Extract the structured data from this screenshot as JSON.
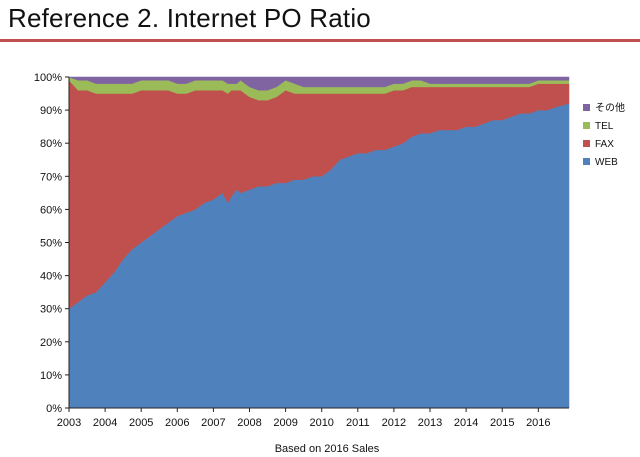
{
  "page": {
    "title": "Reference 2. Internet PO Ratio",
    "accent_color": "#c0504d"
  },
  "chart_data": {
    "type": "area",
    "stacked": true,
    "x_label": "Based on 2016 Sales",
    "x_ticks": [
      "2003",
      "2004",
      "2005",
      "2006",
      "2007",
      "2008",
      "2009",
      "2010",
      "2011",
      "2012",
      "2013",
      "2014",
      "2015",
      "2016"
    ],
    "x_range": [
      2003,
      2016.85
    ],
    "y_ticks": [
      "0%",
      "10%",
      "20%",
      "30%",
      "40%",
      "50%",
      "60%",
      "70%",
      "80%",
      "90%",
      "100%"
    ],
    "y_range": [
      0,
      100
    ],
    "legend_position": "right",
    "x": [
      2003.0,
      2003.25,
      2003.5,
      2003.75,
      2004.0,
      2004.25,
      2004.5,
      2004.75,
      2005.0,
      2005.25,
      2005.5,
      2005.75,
      2006.0,
      2006.25,
      2006.5,
      2006.75,
      2007.0,
      2007.25,
      2007.4,
      2007.5,
      2007.65,
      2007.75,
      2008.0,
      2008.25,
      2008.5,
      2008.75,
      2009.0,
      2009.25,
      2009.5,
      2009.75,
      2010.0,
      2010.25,
      2010.5,
      2010.75,
      2011.0,
      2011.25,
      2011.5,
      2011.75,
      2012.0,
      2012.25,
      2012.5,
      2012.75,
      2013.0,
      2013.25,
      2013.5,
      2013.75,
      2014.0,
      2014.25,
      2014.5,
      2014.75,
      2015.0,
      2015.25,
      2015.5,
      2015.75,
      2016.0,
      2016.25,
      2016.5,
      2016.85
    ],
    "series": [
      {
        "name": "WEB",
        "color": "#4f81bd",
        "values": [
          30,
          32,
          34,
          35,
          38,
          41,
          45,
          48,
          50,
          52,
          54,
          56,
          58,
          59,
          60,
          62,
          63,
          65,
          62,
          64,
          66,
          65,
          66,
          67,
          67,
          68,
          68,
          69,
          69,
          70,
          70,
          72,
          75,
          76,
          77,
          77,
          78,
          78,
          79,
          80,
          82,
          83,
          83,
          84,
          84,
          84,
          85,
          85,
          86,
          87,
          87,
          88,
          89,
          89,
          90,
          90,
          91,
          92
        ]
      },
      {
        "name": "FAX",
        "color": "#c0504d",
        "values": [
          69,
          64,
          62,
          60,
          57,
          54,
          50,
          47,
          46,
          44,
          42,
          40,
          37,
          36,
          36,
          34,
          33,
          31,
          33,
          32,
          30,
          31,
          28,
          26,
          26,
          26,
          28,
          26,
          26,
          25,
          25,
          23,
          20,
          19,
          18,
          18,
          17,
          17,
          17,
          16,
          15,
          14,
          14,
          13,
          13,
          13,
          12,
          12,
          11,
          10,
          10,
          9,
          8,
          8,
          8,
          8,
          7,
          6
        ]
      },
      {
        "name": "TEL",
        "color": "#9bbb59",
        "values": [
          1,
          3,
          3,
          3,
          3,
          3,
          3,
          3,
          3,
          3,
          3,
          3,
          3,
          3,
          3,
          3,
          3,
          3,
          3,
          2,
          2,
          3,
          3,
          3,
          3,
          3,
          3,
          3,
          2,
          2,
          2,
          2,
          2,
          2,
          2,
          2,
          2,
          2,
          2,
          2,
          2,
          2,
          1,
          1,
          1,
          1,
          1,
          1,
          1,
          1,
          1,
          1,
          1,
          1,
          1,
          1,
          1,
          1
        ]
      },
      {
        "name": "その他",
        "color": "#8064a2",
        "values": [
          0,
          1,
          1,
          2,
          2,
          2,
          2,
          2,
          1,
          1,
          1,
          1,
          2,
          2,
          1,
          1,
          1,
          1,
          2,
          2,
          2,
          1,
          3,
          4,
          4,
          3,
          1,
          2,
          3,
          3,
          3,
          3,
          3,
          3,
          3,
          3,
          3,
          3,
          2,
          2,
          1,
          1,
          2,
          2,
          2,
          2,
          2,
          2,
          2,
          2,
          2,
          2,
          2,
          2,
          1,
          1,
          1,
          1
        ]
      }
    ]
  }
}
